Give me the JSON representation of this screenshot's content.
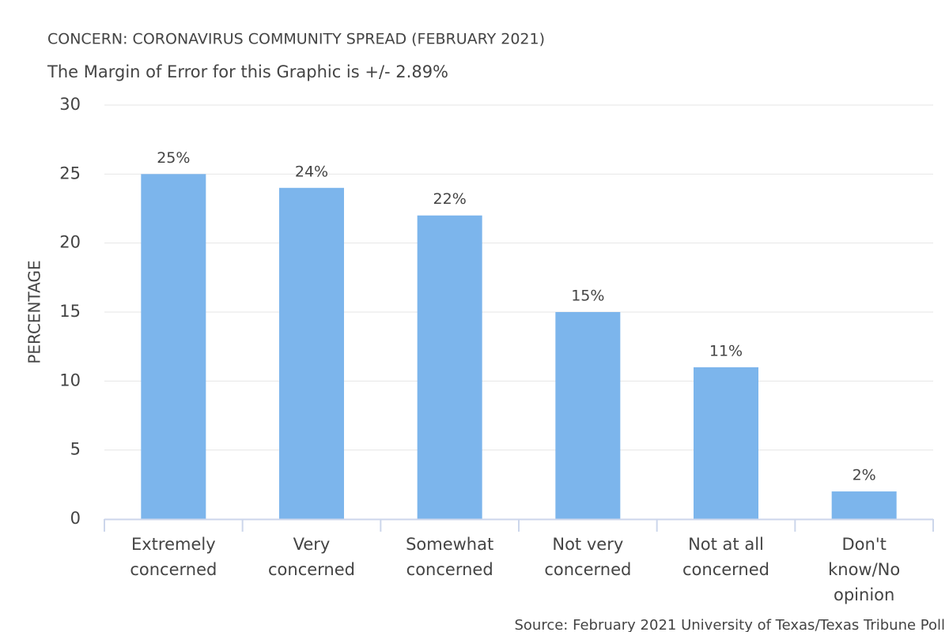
{
  "chart_data": {
    "type": "bar",
    "title": "CONCERN: CORONAVIRUS COMMUNITY SPREAD (FEBRUARY 2021)",
    "subtitle": "The Margin of Error for this Graphic is +/- 2.89%",
    "y_label": "PERCENTAGE",
    "source": "Source: February 2021 University of Texas/Texas Tribune Poll",
    "categories": [
      "Extremely\nconcerned",
      "Very\nconcerned",
      "Somewhat\nconcerned",
      "Not very\nconcerned",
      "Not at all\nconcerned",
      "Don't\nknow/No\nopinion"
    ],
    "values": [
      25,
      24,
      22,
      15,
      11,
      2
    ],
    "value_labels": [
      "25%",
      "24%",
      "22%",
      "15%",
      "11%",
      "2%"
    ],
    "color": "#7cb5ec",
    "ylim": [
      0,
      30
    ],
    "yticks": [
      0,
      5,
      10,
      15,
      20,
      25,
      30
    ],
    "grid": true
  }
}
